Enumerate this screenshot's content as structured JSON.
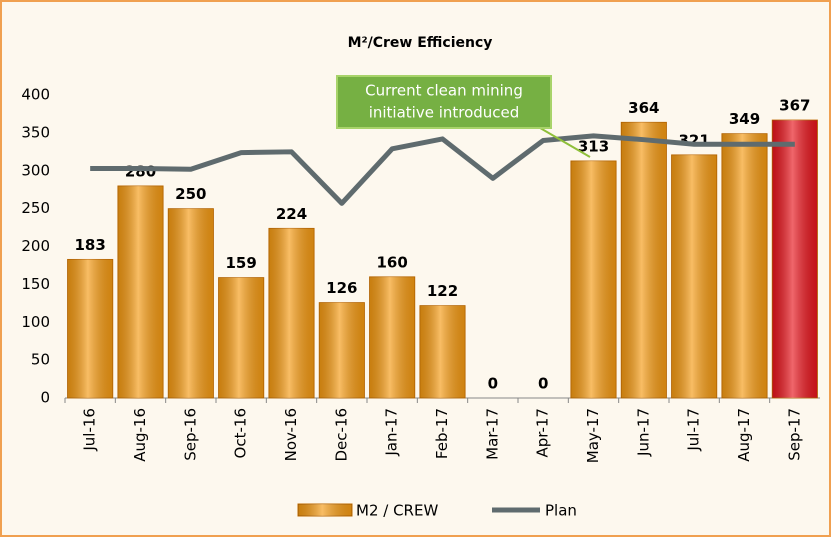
{
  "chart_data": {
    "type": "bar",
    "title": "M²/Crew Efficiency",
    "categories": [
      "Jul-16",
      "Aug-16",
      "Sep-16",
      "Oct-16",
      "Nov-16",
      "Dec-16",
      "Jan-17",
      "Feb-17",
      "Mar-17",
      "Apr-17",
      "May-17",
      "Jun-17",
      "Jul-17",
      "Aug-17",
      "Sep-17"
    ],
    "series": [
      {
        "name": "M2 / CREW",
        "type": "bar",
        "color": "#f59a12",
        "colors": [
          "#f59a12",
          "#f59a12",
          "#f59a12",
          "#f59a12",
          "#f59a12",
          "#f59a12",
          "#f59a12",
          "#f59a12",
          "#f59a12",
          "#f59a12",
          "#f59a12",
          "#f59a12",
          "#f59a12",
          "#f59a12",
          "#e8141c"
        ],
        "values": [
          183,
          280,
          250,
          159,
          224,
          126,
          160,
          122,
          0,
          0,
          313,
          364,
          321,
          349,
          367
        ]
      },
      {
        "name": "Plan",
        "type": "line",
        "color": "#5f6b6e",
        "values": [
          303,
          303,
          302,
          324,
          325,
          257,
          329,
          342,
          290,
          340,
          346,
          341,
          335,
          335,
          335
        ]
      }
    ],
    "annotation": [
      "Current clean mining",
      "initiative introduced"
    ],
    "ylim": [
      0,
      400
    ],
    "yticks": [
      0,
      50,
      100,
      150,
      200,
      250,
      300,
      350,
      400
    ],
    "grid": false,
    "legend": "bottom"
  }
}
